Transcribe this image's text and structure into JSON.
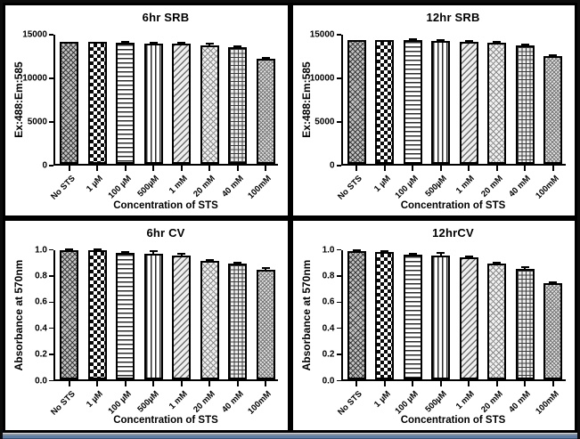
{
  "window": {
    "frame_border_color": "#0c0c0c",
    "panel_background": "#ffffff",
    "bottom_edge_color": "#5b7fa8"
  },
  "bar_patterns": [
    "dense-diamond-weave",
    "checkerboard",
    "horizontal-lines",
    "vertical-lines",
    "diagonal-lines",
    "diagonal-mesh",
    "square-grid",
    "fine-diagonal-mesh"
  ],
  "chart_data": [
    {
      "type": "bar",
      "title": "6hr SRB",
      "ylabel": "Ex:488:Em:585",
      "xlabel": "Concentration of STS",
      "categories": [
        "No STS",
        "1 µM",
        "100 µM",
        "500µM",
        "1 mM",
        "20 mM",
        "40 mM",
        "100mM"
      ],
      "values": [
        14000,
        14000,
        13900,
        13800,
        13750,
        13600,
        13400,
        12050
      ],
      "errors": [
        0,
        0,
        130,
        90,
        110,
        130,
        110,
        130
      ],
      "ytick_values": [
        0,
        5000,
        10000,
        15000
      ],
      "ytick_labels": [
        "0",
        "5000",
        "10000",
        "15000"
      ],
      "ylim": [
        0,
        15000
      ],
      "grid": false,
      "legend": null
    },
    {
      "type": "bar",
      "title": "12hr SRB",
      "ylabel": "Ex:488:Em:585",
      "xlabel": "Concentration of STS",
      "categories": [
        "No STS",
        "1 µM",
        "100 µM",
        "500µM",
        "1 mM",
        "20 mM",
        "40 mM",
        "100mM"
      ],
      "values": [
        14200,
        14200,
        14150,
        14050,
        14000,
        13850,
        13550,
        12300
      ],
      "errors": [
        0,
        0,
        110,
        100,
        120,
        130,
        110,
        130
      ],
      "ytick_values": [
        0,
        5000,
        10000,
        15000
      ],
      "ytick_labels": [
        "0",
        "5000",
        "10000",
        "15000"
      ],
      "ylim": [
        0,
        15000
      ],
      "grid": false,
      "legend": null
    },
    {
      "type": "bar",
      "title": "6hr CV",
      "ylabel": "Absorbance at 570nm",
      "xlabel": "Concentration of STS",
      "categories": [
        "No STS",
        "1 µM",
        "100 µM",
        "500µM",
        "1 mM",
        "20 mM",
        "40 mM",
        "100mM"
      ],
      "values": [
        0.985,
        0.985,
        0.96,
        0.955,
        0.945,
        0.9,
        0.88,
        0.835
      ],
      "errors": [
        0.004,
        0.004,
        0.01,
        0.022,
        0.008,
        0.008,
        0.005,
        0.01
      ],
      "ytick_values": [
        0,
        0.2,
        0.4,
        0.6,
        0.8,
        1.0
      ],
      "ytick_labels": [
        "0.0",
        "0.2",
        "0.4",
        "0.6",
        "0.8",
        "1.0"
      ],
      "ylim": [
        0,
        1.0
      ],
      "grid": false,
      "legend": null
    },
    {
      "type": "bar",
      "title": "12hrCV",
      "ylabel": "Absorbance at 570nm",
      "xlabel": "Concentration of STS",
      "categories": [
        "No STS",
        "1 µM",
        "100 µM",
        "500µM",
        "1 mM",
        "20 mM",
        "40 mM",
        "100mM"
      ],
      "values": [
        0.975,
        0.97,
        0.95,
        0.94,
        0.93,
        0.882,
        0.843,
        0.73
      ],
      "errors": [
        0.005,
        0.007,
        0.008,
        0.025,
        0.008,
        0.007,
        0.008,
        0.008
      ],
      "ytick_values": [
        0,
        0.2,
        0.4,
        0.6,
        0.8,
        1.0
      ],
      "ytick_labels": [
        "0.0",
        "0.2",
        "0.4",
        "0.6",
        "0.8",
        "1.0"
      ],
      "ylim": [
        0,
        1.0
      ],
      "grid": false,
      "legend": null
    }
  ]
}
